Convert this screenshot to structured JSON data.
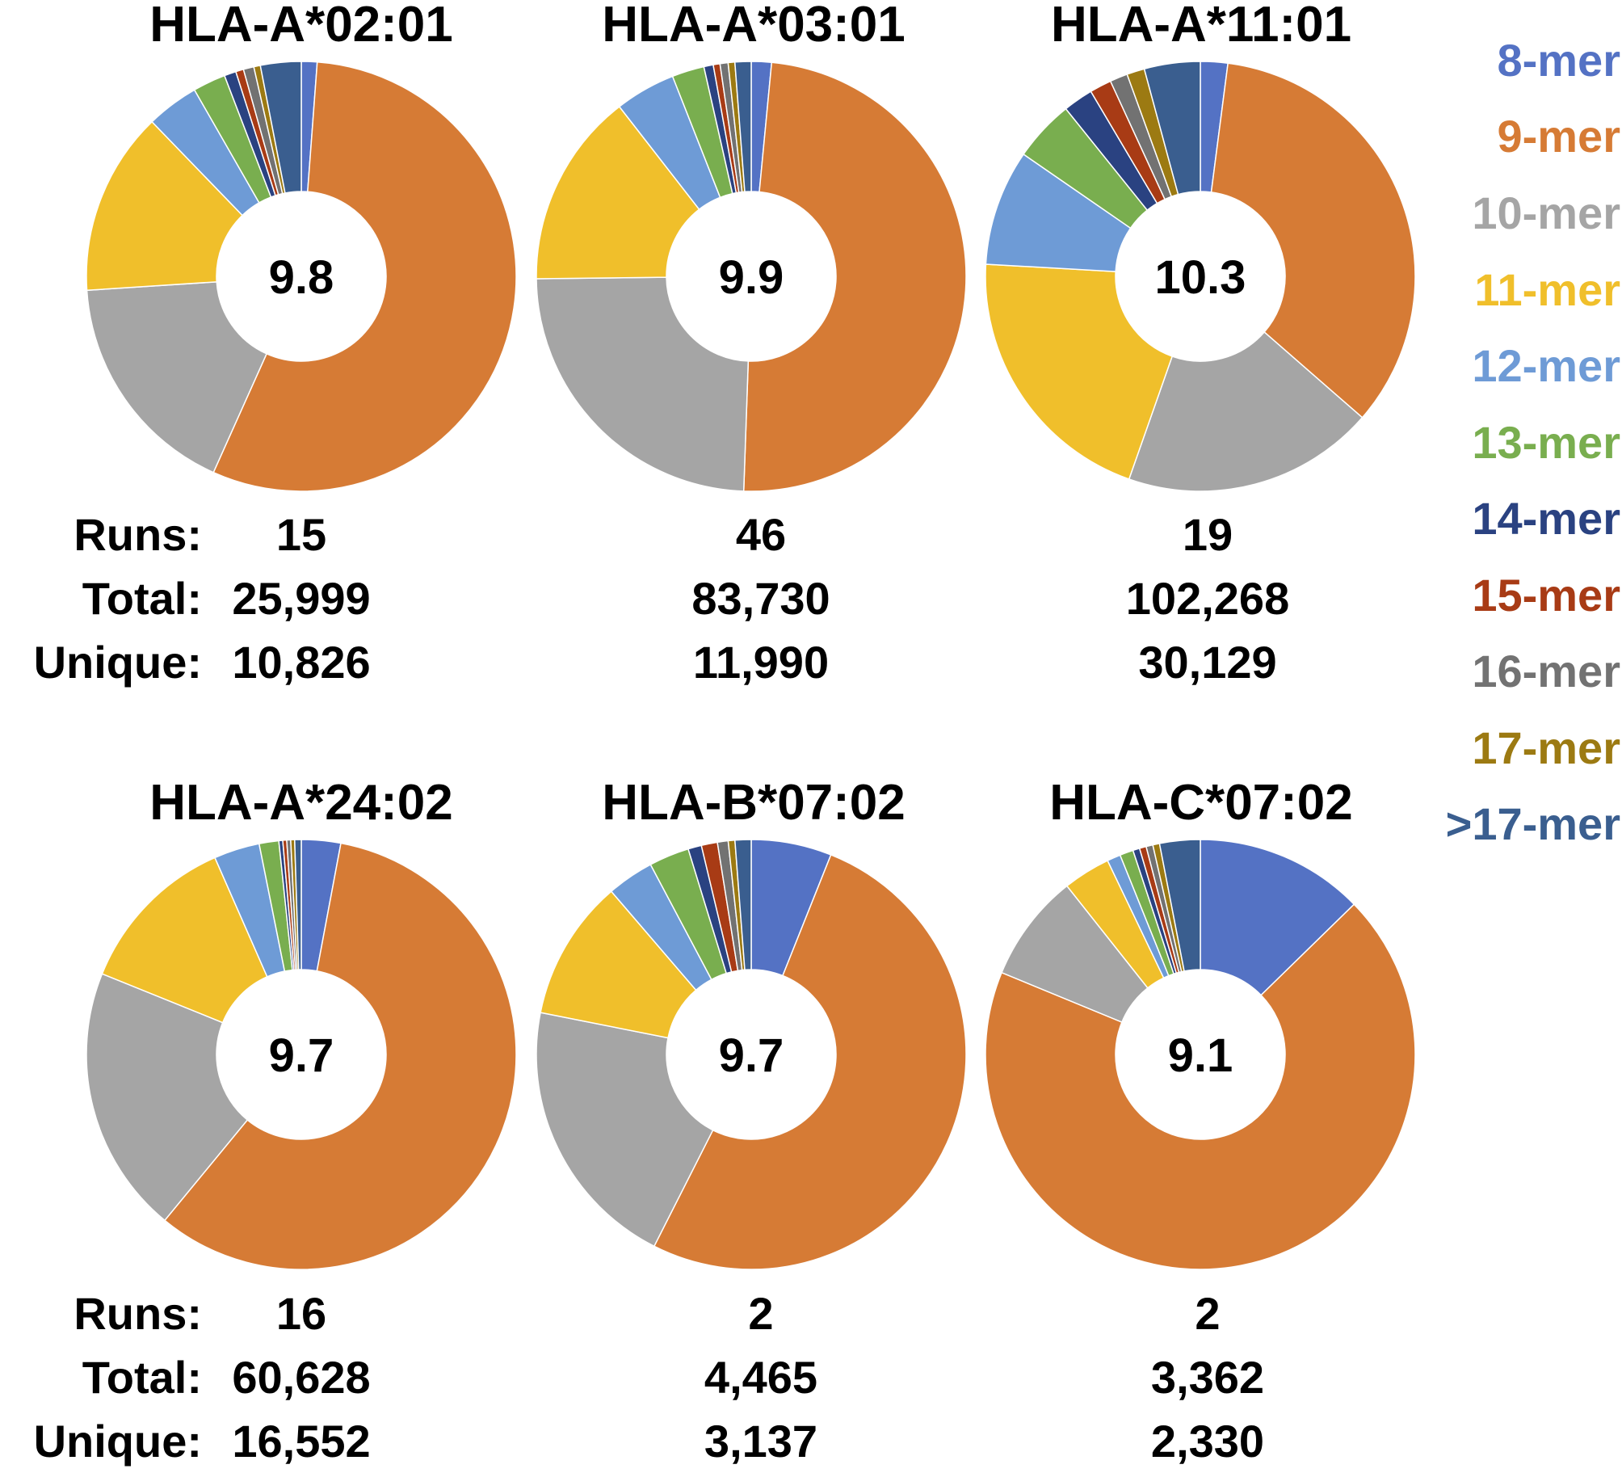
{
  "legend": [
    {
      "label": "8-mer",
      "color": "#5472C4"
    },
    {
      "label": "9-mer",
      "color": "#D67B35"
    },
    {
      "label": "10-mer",
      "color": "#A5A5A5"
    },
    {
      "label": "11-mer",
      "color": "#F0BF2B"
    },
    {
      "label": "12-mer",
      "color": "#6E9BD6"
    },
    {
      "label": "13-mer",
      "color": "#79AE4F"
    },
    {
      "label": "14-mer",
      "color": "#2A4281"
    },
    {
      "label": "15-mer",
      "color": "#A83B15"
    },
    {
      "label": "16-mer",
      "color": "#727272"
    },
    {
      "label": "17-mer",
      "color": "#9C7A12"
    },
    {
      "label": ">17-mer",
      "color": "#3A5E8F"
    }
  ],
  "row_labels": {
    "runs": "Runs:",
    "total": "Total:",
    "unique": "Unique:"
  },
  "chart_data": [
    {
      "type": "pie",
      "title": "HLA-A*02:01",
      "center_label": "9.8",
      "categories": [
        "8-mer",
        "9-mer",
        "10-mer",
        "11-mer",
        "12-mer",
        "13-mer",
        "14-mer",
        "15-mer",
        "16-mer",
        "17-mer",
        ">17-mer"
      ],
      "values": [
        1.2,
        56.3,
        17.5,
        14.0,
        4.0,
        2.5,
        0.9,
        0.6,
        0.8,
        0.5,
        3.1
      ],
      "runs": "15",
      "total": "25,999",
      "unique": "10,826"
    },
    {
      "type": "pie",
      "title": "HLA-A*03:01",
      "center_label": "9.9",
      "categories": [
        "8-mer",
        "9-mer",
        "10-mer",
        "11-mer",
        "12-mer",
        "13-mer",
        "14-mer",
        "15-mer",
        "16-mer",
        "17-mer",
        ">17-mer"
      ],
      "values": [
        1.5,
        48.5,
        24.0,
        14.5,
        4.5,
        2.4,
        0.7,
        0.5,
        0.6,
        0.5,
        1.2
      ],
      "runs": "46",
      "total": "83,730",
      "unique": "11,990"
    },
    {
      "type": "pie",
      "title": "HLA-A*11:01",
      "center_label": "10.3",
      "categories": [
        "8-mer",
        "9-mer",
        "10-mer",
        "11-mer",
        "12-mer",
        "13-mer",
        "14-mer",
        "15-mer",
        "16-mer",
        "17-mer",
        ">17-mer"
      ],
      "values": [
        2.0,
        33.5,
        18.5,
        20.0,
        8.5,
        4.5,
        2.2,
        1.6,
        1.3,
        1.3,
        4.1
      ],
      "runs": "19",
      "total": "102,268",
      "unique": "30,129"
    },
    {
      "type": "pie",
      "title": "HLA-A*24:02",
      "center_label": "9.7",
      "categories": [
        "8-mer",
        "9-mer",
        "10-mer",
        "11-mer",
        "12-mer",
        "13-mer",
        "14-mer",
        "15-mer",
        "16-mer",
        "17-mer",
        ">17-mer"
      ],
      "values": [
        3.0,
        59.0,
        20.5,
        12.5,
        3.5,
        1.5,
        0.3,
        0.3,
        0.3,
        0.3,
        0.5
      ],
      "runs": "16",
      "total": "60,628",
      "unique": "16,552"
    },
    {
      "type": "pie",
      "title": "HLA-B*07:02",
      "center_label": "9.7",
      "categories": [
        "8-mer",
        "9-mer",
        "10-mer",
        "11-mer",
        "12-mer",
        "13-mer",
        "14-mer",
        "15-mer",
        "16-mer",
        "17-mer",
        ">17-mer"
      ],
      "values": [
        6.0,
        51.0,
        20.5,
        10.5,
        3.5,
        3.0,
        1.0,
        1.2,
        0.8,
        0.5,
        1.2
      ],
      "runs": "2",
      "total": "4,465",
      "unique": "3,137"
    },
    {
      "type": "pie",
      "title": "HLA-C*07:02",
      "center_label": "9.1",
      "categories": [
        "8-mer",
        "9-mer",
        "10-mer",
        "11-mer",
        "12-mer",
        "13-mer",
        "14-mer",
        "15-mer",
        "16-mer",
        "17-mer",
        ">17-mer"
      ],
      "values": [
        12.5,
        67.5,
        8.0,
        3.5,
        1.0,
        1.0,
        0.5,
        0.5,
        0.5,
        0.5,
        3.0
      ],
      "runs": "2",
      "total": "3,362",
      "unique": "2,330"
    }
  ]
}
